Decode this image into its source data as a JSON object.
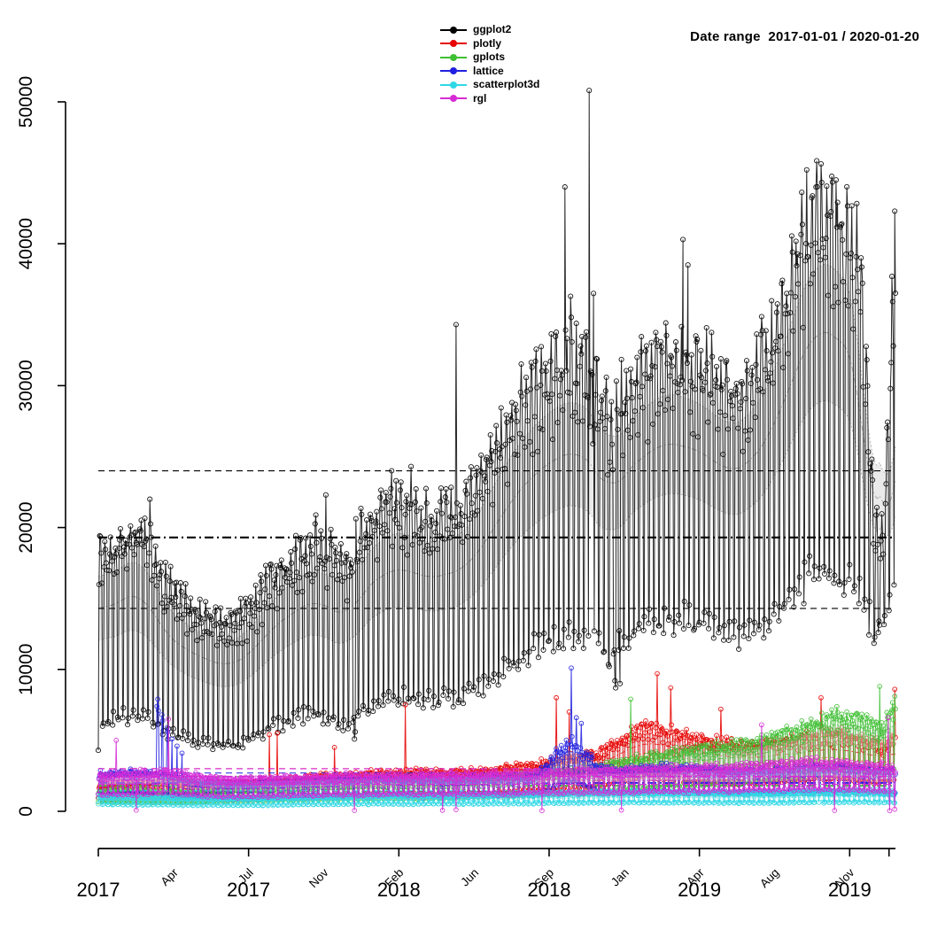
{
  "chart_data": {
    "type": "line",
    "title": "",
    "annotations": {
      "date_range": "Date range  2017-01-01 / 2020-01-20"
    },
    "x_axis": {
      "start_date": "2017-01-01",
      "end_date": "2020-01-20",
      "total_days": 1115,
      "slots": [
        {
          "d": 0,
          "month": "",
          "year": "2017",
          "tick": true
        },
        {
          "d": 105,
          "month": "Apr",
          "year": "",
          "tick": false
        },
        {
          "d": 210,
          "month": "Jul",
          "year": "2017",
          "tick": true
        },
        {
          "d": 315,
          "month": "Nov",
          "year": "",
          "tick": false
        },
        {
          "d": 420,
          "month": "Feb",
          "year": "2018",
          "tick": true
        },
        {
          "d": 525,
          "month": "Jun",
          "year": "",
          "tick": false
        },
        {
          "d": 630,
          "month": "Sep",
          "year": "2018",
          "tick": true
        },
        {
          "d": 735,
          "month": "Jan",
          "year": "",
          "tick": false
        },
        {
          "d": 840,
          "month": "Apr",
          "year": "2019",
          "tick": true
        },
        {
          "d": 945,
          "month": "Aug",
          "year": "",
          "tick": false
        },
        {
          "d": 1050,
          "month": "Nov",
          "year": "2019",
          "tick": true
        }
      ],
      "edge_tick_day": 1105
    },
    "y_axis": {
      "ticks": [
        0,
        10000,
        20000,
        30000,
        40000,
        50000
      ],
      "tick_labels": [
        "0",
        "10000",
        "20000",
        "30000",
        "40000",
        "50000"
      ],
      "max_observed_value": 50800,
      "grid": false
    },
    "legend": {
      "position": "top-center",
      "entries": [
        "ggplot2",
        "plotly",
        "gplots",
        "lattice",
        "scatterplot3d",
        "rgl"
      ]
    },
    "series": [
      {
        "name": "ggplot2",
        "color": "#000000",
        "marker": "open-circle",
        "anchors": [
          [
            0,
            18800,
            6300
          ],
          [
            31,
            19600,
            6900
          ],
          [
            59,
            21000,
            7000
          ],
          [
            90,
            16800,
            5900
          ],
          [
            120,
            15200,
            5300
          ],
          [
            151,
            14200,
            5000
          ],
          [
            181,
            13500,
            4700
          ],
          [
            212,
            14600,
            5200
          ],
          [
            243,
            17200,
            6100
          ],
          [
            273,
            18500,
            6700
          ],
          [
            304,
            19800,
            7200
          ],
          [
            334,
            18600,
            6400
          ],
          [
            352,
            18000,
            6100
          ],
          [
            365,
            20300,
            7400
          ],
          [
            396,
            22000,
            7900
          ],
          [
            424,
            22800,
            8300
          ],
          [
            455,
            21500,
            8100
          ],
          [
            485,
            21800,
            8200
          ],
          [
            516,
            22500,
            8500
          ],
          [
            546,
            25500,
            9400
          ],
          [
            577,
            28800,
            10800
          ],
          [
            608,
            31000,
            11800
          ],
          [
            638,
            32500,
            12400
          ],
          [
            669,
            33200,
            12900
          ],
          [
            699,
            31500,
            12000
          ],
          [
            716,
            28500,
            10500
          ],
          [
            730,
            30500,
            12600
          ],
          [
            761,
            32000,
            13400
          ],
          [
            789,
            33500,
            13900
          ],
          [
            820,
            33000,
            13900
          ],
          [
            850,
            32300,
            13600
          ],
          [
            881,
            30500,
            12900
          ],
          [
            911,
            31500,
            13100
          ],
          [
            942,
            34500,
            14100
          ],
          [
            973,
            40000,
            16000
          ],
          [
            1003,
            44500,
            17400
          ],
          [
            1034,
            43500,
            17000
          ],
          [
            1064,
            41000,
            16200
          ],
          [
            1085,
            20500,
            12800
          ],
          [
            1097,
            20000,
            13500
          ],
          [
            1105,
            30000,
            14500
          ],
          [
            1114,
            42300,
            17000
          ]
        ],
        "spikes": [
          [
            0,
            4300
          ],
          [
            72,
            22000
          ],
          [
            318,
            22300
          ],
          [
            358,
            5100
          ],
          [
            359,
            5600
          ],
          [
            410,
            24000
          ],
          [
            437,
            24300
          ],
          [
            500,
            34300
          ],
          [
            652,
            44000
          ],
          [
            660,
            36300
          ],
          [
            686,
            50800
          ],
          [
            692,
            36500
          ],
          [
            722,
            9200
          ],
          [
            723,
            8700
          ],
          [
            729,
            9000
          ],
          [
            817,
            40300
          ],
          [
            824,
            38500
          ],
          [
            1090,
            12600
          ],
          [
            1091,
            13400
          ],
          [
            1113,
            42300
          ]
        ],
        "hlines": [
          {
            "value": 24000,
            "style": "dashed"
          },
          {
            "value": 19300,
            "style": "dashdot"
          },
          {
            "value": 14300,
            "style": "dashed"
          }
        ],
        "band": true
      },
      {
        "name": "plotly",
        "color": "#e60000",
        "marker": "open-circle",
        "anchors": [
          [
            0,
            1900,
            900
          ],
          [
            59,
            2100,
            950
          ],
          [
            120,
            2000,
            900
          ],
          [
            181,
            1900,
            850
          ],
          [
            243,
            2200,
            1000
          ],
          [
            304,
            2500,
            1100
          ],
          [
            365,
            2700,
            1200
          ],
          [
            424,
            2900,
            1300
          ],
          [
            485,
            2800,
            1250
          ],
          [
            546,
            3000,
            1350
          ],
          [
            608,
            3400,
            1500
          ],
          [
            669,
            3900,
            1700
          ],
          [
            699,
            4200,
            1800
          ],
          [
            730,
            5200,
            2200
          ],
          [
            761,
            6300,
            2600
          ],
          [
            789,
            6000,
            2500
          ],
          [
            820,
            5500,
            2300
          ],
          [
            850,
            5200,
            2200
          ],
          [
            881,
            4900,
            2100
          ],
          [
            911,
            4800,
            2050
          ],
          [
            942,
            5000,
            2150
          ],
          [
            973,
            5200,
            2250
          ],
          [
            1003,
            5500,
            2350
          ],
          [
            1034,
            5600,
            2400
          ],
          [
            1064,
            5300,
            2250
          ],
          [
            1095,
            4800,
            2100
          ],
          [
            1114,
            5600,
            2400
          ]
        ],
        "spikes": [
          [
            239,
            5400
          ],
          [
            250,
            5500
          ],
          [
            330,
            4500
          ],
          [
            429,
            7500
          ],
          [
            640,
            8000
          ],
          [
            658,
            7000
          ],
          [
            781,
            9700
          ],
          [
            800,
            8700
          ],
          [
            870,
            7200
          ],
          [
            1010,
            8000
          ],
          [
            1113,
            8600
          ]
        ],
        "hlines": [
          {
            "value": 3000,
            "style": "dashed"
          },
          {
            "value": 2200,
            "style": "dashdot"
          },
          {
            "value": 1400,
            "style": "dashed"
          }
        ],
        "band": true
      },
      {
        "name": "gplots",
        "color": "#3fbf33",
        "marker": "open-circle",
        "anchors": [
          [
            0,
            1500,
            700
          ],
          [
            120,
            1400,
            650
          ],
          [
            243,
            1700,
            800
          ],
          [
            365,
            2000,
            900
          ],
          [
            485,
            2100,
            950
          ],
          [
            608,
            2600,
            1150
          ],
          [
            699,
            3200,
            1400
          ],
          [
            730,
            3600,
            1600
          ],
          [
            789,
            4200,
            1800
          ],
          [
            850,
            4600,
            2000
          ],
          [
            911,
            5000,
            2150
          ],
          [
            973,
            5800,
            2500
          ],
          [
            1003,
            6500,
            2800
          ],
          [
            1034,
            7000,
            3000
          ],
          [
            1064,
            6800,
            2900
          ],
          [
            1095,
            6000,
            2600
          ],
          [
            1114,
            8000,
            3400
          ]
        ],
        "spikes": [
          [
            744,
            7900
          ],
          [
            1092,
            8800
          ],
          [
            1113,
            8100
          ]
        ],
        "hlines": [
          {
            "value": 2450,
            "style": "dashed"
          },
          {
            "value": 1800,
            "style": "dashdot"
          },
          {
            "value": 1150,
            "style": "dashed"
          }
        ],
        "band": true
      },
      {
        "name": "lattice",
        "color": "#2020e0",
        "marker": "open-circle",
        "anchors": [
          [
            0,
            2700,
            1200
          ],
          [
            59,
            2900,
            1300
          ],
          [
            120,
            2300,
            1050
          ],
          [
            181,
            2000,
            900
          ],
          [
            243,
            2100,
            950
          ],
          [
            304,
            2200,
            1000
          ],
          [
            365,
            2400,
            1100
          ],
          [
            485,
            2300,
            1050
          ],
          [
            608,
            2500,
            1150
          ],
          [
            662,
            5300,
            2300
          ],
          [
            680,
            4300,
            1900
          ],
          [
            699,
            3200,
            1450
          ],
          [
            730,
            3000,
            1350
          ],
          [
            789,
            3200,
            1450
          ],
          [
            850,
            3000,
            1350
          ],
          [
            911,
            2900,
            1300
          ],
          [
            973,
            3100,
            1400
          ],
          [
            1034,
            3200,
            1450
          ],
          [
            1064,
            3000,
            1350
          ],
          [
            1114,
            2900,
            1300
          ]
        ],
        "spikes": [
          [
            82,
            7400
          ],
          [
            83,
            7900
          ],
          [
            84,
            7100
          ],
          [
            89,
            6800
          ],
          [
            90,
            6400
          ],
          [
            96,
            5900
          ],
          [
            97,
            5600
          ],
          [
            103,
            5100
          ],
          [
            110,
            4600
          ],
          [
            117,
            4100
          ],
          [
            661,
            10100
          ],
          [
            668,
            6600
          ],
          [
            675,
            6200
          ]
        ],
        "hlines": [
          {
            "value": 2700,
            "style": "dashed"
          },
          {
            "value": 2000,
            "style": "dashdot"
          },
          {
            "value": 1300,
            "style": "dashed"
          }
        ],
        "band": true
      },
      {
        "name": "scatterplot3d",
        "color": "#2fd8e6",
        "marker": "open-circle",
        "anchors": [
          [
            0,
            1100,
            500
          ],
          [
            181,
            950,
            420
          ],
          [
            365,
            1150,
            520
          ],
          [
            546,
            1200,
            540
          ],
          [
            730,
            1400,
            620
          ],
          [
            911,
            1350,
            600
          ],
          [
            1064,
            1500,
            660
          ],
          [
            1114,
            1450,
            640
          ]
        ],
        "spikes": [
          [
            1008,
            2600
          ]
        ],
        "hlines": [
          {
            "value": 1450,
            "style": "dashed"
          },
          {
            "value": 1100,
            "style": "dashdot"
          },
          {
            "value": 750,
            "style": "dashed"
          }
        ],
        "band": true
      },
      {
        "name": "rgl",
        "color": "#d62bd6",
        "marker": "open-circle",
        "anchors": [
          [
            0,
            2600,
            1200
          ],
          [
            90,
            2900,
            1300
          ],
          [
            181,
            2300,
            1050
          ],
          [
            365,
            2600,
            1200
          ],
          [
            546,
            2700,
            1250
          ],
          [
            730,
            3000,
            1400
          ],
          [
            911,
            3300,
            1500
          ],
          [
            1003,
            3600,
            1650
          ],
          [
            1064,
            3400,
            1550
          ],
          [
            1114,
            3200,
            1450
          ]
        ],
        "spikes": [
          [
            25,
            5000
          ],
          [
            53,
            80
          ],
          [
            98,
            6500
          ],
          [
            358,
            60
          ],
          [
            481,
            70
          ],
          [
            500,
            120
          ],
          [
            620,
            50
          ],
          [
            731,
            90
          ],
          [
            927,
            6100
          ],
          [
            1029,
            60
          ],
          [
            1104,
            6600
          ],
          [
            1106,
            40
          ],
          [
            1113,
            150
          ]
        ],
        "hlines": [
          {
            "value": 3000,
            "style": "dashed"
          },
          {
            "value": 2450,
            "style": "dashdot"
          },
          {
            "value": 1900,
            "style": "dashed"
          }
        ],
        "band": true
      }
    ],
    "style": {
      "background": "#ffffff",
      "band_fill": "#dcdcdc",
      "axis_color": "#000000",
      "weekly_pattern_note": "daily downloads; weekday highs (hi anchor), weekend lows (lo anchor)"
    }
  }
}
